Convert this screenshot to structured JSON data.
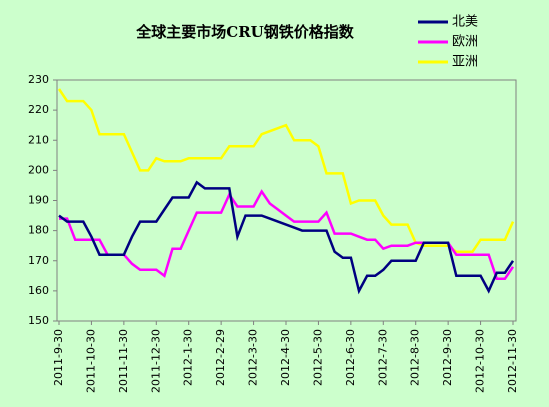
{
  "chart_data": {
    "type": "line",
    "title": "全球主要市场CRU钢铁价格指数",
    "categories": [
      "2011-9-30",
      null,
      null,
      null,
      "2011-10-30",
      null,
      null,
      null,
      "2011-11-30",
      null,
      null,
      null,
      "2011-12-30",
      null,
      null,
      null,
      "2012-1-30",
      null,
      null,
      null,
      "2012-2-29",
      null,
      null,
      null,
      "2012-3-30",
      null,
      null,
      null,
      "2012-4-30",
      null,
      null,
      null,
      "2012-5-30",
      null,
      null,
      null,
      "2012-6-30",
      null,
      null,
      null,
      "2012-7-30",
      null,
      null,
      null,
      "2012-8-30",
      null,
      null,
      null,
      "2012-9-30",
      null,
      null,
      null,
      "2012-10-30",
      null,
      null,
      null,
      "2012-11-30"
    ],
    "series": [
      {
        "name": "北美",
        "color": "#000080",
        "values": [
          185,
          183,
          183,
          183,
          178,
          172,
          172,
          172,
          172,
          178,
          183,
          183,
          183,
          187,
          191,
          191,
          191,
          196,
          194,
          194,
          194,
          194,
          178,
          185,
          185,
          185,
          184,
          183,
          182,
          181,
          180,
          180,
          180,
          180,
          173,
          171,
          171,
          160,
          165,
          165,
          167,
          170,
          170,
          170,
          170,
          176,
          176,
          176,
          176,
          165,
          165,
          165,
          165,
          160,
          166,
          166,
          170
        ]
      },
      {
        "name": "欧洲",
        "color": "#ff00ff",
        "values": [
          184,
          184,
          177,
          177,
          177,
          177,
          172,
          172,
          172,
          169,
          167,
          167,
          167,
          165,
          174,
          174,
          180,
          186,
          186,
          186,
          186,
          192,
          188,
          188,
          188,
          193,
          189,
          187,
          185,
          183,
          183,
          183,
          183,
          186,
          179,
          179,
          179,
          178,
          177,
          177,
          174,
          175,
          175,
          175,
          176,
          176,
          176,
          176,
          176,
          172,
          172,
          172,
          172,
          172,
          164,
          164,
          168
        ]
      },
      {
        "name": "亚洲",
        "color": "#ffff00",
        "values": [
          227,
          223,
          223,
          223,
          220,
          212,
          212,
          212,
          212,
          206,
          200,
          200,
          204,
          203,
          203,
          203,
          204,
          204,
          204,
          204,
          204,
          208,
          208,
          208,
          208,
          212,
          213,
          214,
          215,
          210,
          210,
          210,
          208,
          199,
          199,
          199,
          189,
          190,
          190,
          190,
          185,
          182,
          182,
          182,
          176,
          175,
          175,
          175,
          175,
          173,
          173,
          173,
          177,
          177,
          177,
          177,
          183
        ]
      }
    ],
    "ylim": [
      150,
      230
    ],
    "yticks": [
      150,
      160,
      170,
      180,
      190,
      200,
      210,
      220,
      230
    ]
  }
}
